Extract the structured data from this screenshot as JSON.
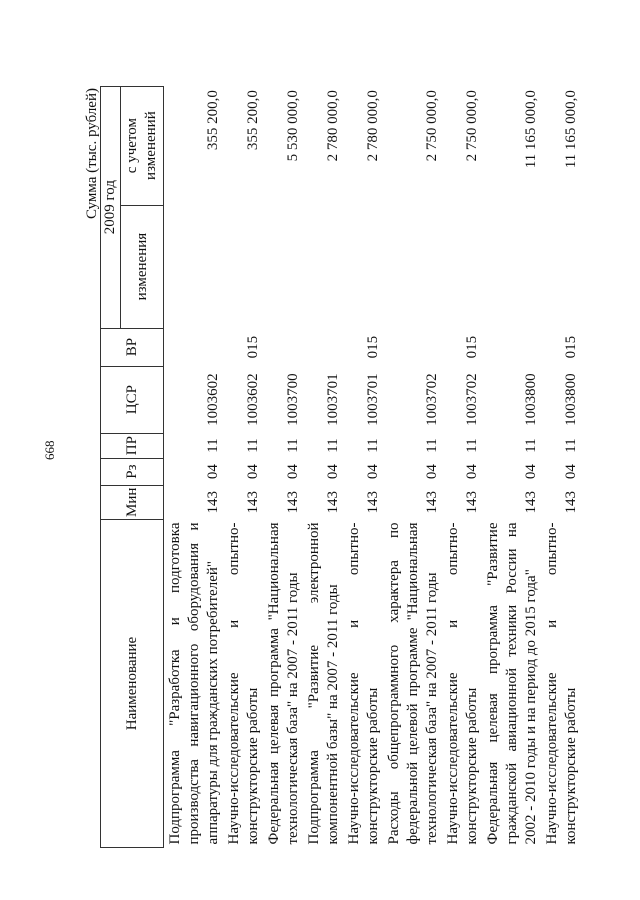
{
  "page_number": "668",
  "units_label": "Сумма (тыс. рублей)",
  "headers": {
    "name": "Наименование",
    "min": "Мин",
    "rz": "Рз",
    "pr": "ПР",
    "csr": "ЦСР",
    "vr": "ВР",
    "year": "2009 год",
    "changes": "изменения",
    "with_changes": "с учетом изменений"
  },
  "rows": [
    {
      "name": "Подпрограмма \"Разработка и подготовка производства навигационного оборудования и аппаратуры для гражданских потребителей\"",
      "min": "143",
      "rz": "04",
      "pr": "11",
      "csr": "1003602",
      "vr": "",
      "changes": "",
      "total": "355 200,0"
    },
    {
      "name": "Научно-исследовательские и опытно-конструкторские работы",
      "min": "143",
      "rz": "04",
      "pr": "11",
      "csr": "1003602",
      "vr": "015",
      "changes": "",
      "total": "355 200,0"
    },
    {
      "name": "Федеральная целевая программа \"Национальная технологическая база\" на 2007 - 2011 годы",
      "min": "143",
      "rz": "04",
      "pr": "11",
      "csr": "1003700",
      "vr": "",
      "changes": "",
      "total": "5 530 000,0"
    },
    {
      "name": "Подпрограмма \"Развитие электронной компонентной базы\" на 2007 - 2011 годы",
      "min": "143",
      "rz": "04",
      "pr": "11",
      "csr": "1003701",
      "vr": "",
      "changes": "",
      "total": "2 780 000,0"
    },
    {
      "name": "Научно-исследовательские и опытно-конструкторские работы",
      "min": "143",
      "rz": "04",
      "pr": "11",
      "csr": "1003701",
      "vr": "015",
      "changes": "",
      "total": "2 780 000,0"
    },
    {
      "name": "Расходы общепрограммного характера по федеральной целевой программе \"Национальная технологическая база\" на 2007 - 2011 годы",
      "min": "143",
      "rz": "04",
      "pr": "11",
      "csr": "1003702",
      "vr": "",
      "changes": "",
      "total": "2 750 000,0"
    },
    {
      "name": "Научно-исследовательские и опытно-конструкторские работы",
      "min": "143",
      "rz": "04",
      "pr": "11",
      "csr": "1003702",
      "vr": "015",
      "changes": "",
      "total": "2 750 000,0"
    },
    {
      "name": "Федеральная целевая программа \"Развитие гражданской авиационной техники России на 2002 - 2010 годы и на период до 2015 года\"",
      "min": "143",
      "rz": "04",
      "pr": "11",
      "csr": "1003800",
      "vr": "",
      "changes": "",
      "total": "11 165 000,0"
    },
    {
      "name": "Научно-исследовательские и опытно-конструкторские работы",
      "min": "143",
      "rz": "04",
      "pr": "11",
      "csr": "1003800",
      "vr": "015",
      "changes": "",
      "total": "11 165 000,0"
    }
  ]
}
